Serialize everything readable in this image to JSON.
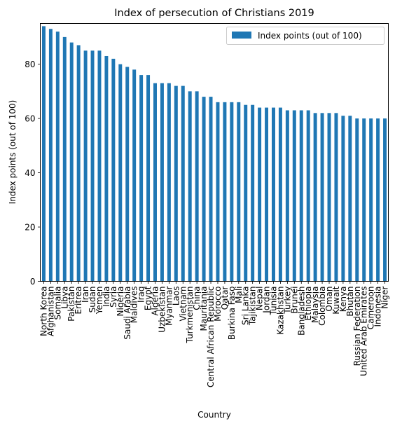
{
  "chart_data": {
    "type": "bar",
    "title": "Index of persecution of Christians 2019",
    "xlabel": "Country",
    "ylabel": "Index points (out of 100)",
    "ylim": [
      0,
      95
    ],
    "yticks": [
      0,
      20,
      40,
      60,
      80
    ],
    "grid": false,
    "legend_position": "top-right",
    "bar_color": "#1f77b4",
    "categories": [
      "North Korea",
      "Afghanistan",
      "Somalia",
      "Libya",
      "Pakistan",
      "Eritrea",
      "Iran",
      "Sudan",
      "Yemen",
      "India",
      "Syria",
      "Nigeria",
      "Saudi Arabia",
      "Maldives",
      "Iraq",
      "Egypt",
      "Algeria",
      "Uzbekistan",
      "Myanmar",
      "Laos",
      "Vietnam",
      "Turkmenistan",
      "China",
      "Mauritania",
      "Central African Republic",
      "Morocco",
      "Qatar",
      "Burkina Faso",
      "Mali",
      "Sri Lanka",
      "Tajikistan",
      "Nepal",
      "Jordan",
      "Tunisia",
      "Kazakhstan",
      "Turkey",
      "Brunei",
      "Bangladesh",
      "Ethiopia",
      "Malaysia",
      "Colombia",
      "Oman",
      "Kuwait",
      "Kenya",
      "Bhutan",
      "Russian Federation",
      "United Arab Emirates",
      "Cameroon",
      "Indonesia",
      "Niger"
    ],
    "series": [
      {
        "name": "Index points (out of 100)",
        "values": [
          94,
          93,
          92,
          90,
          88,
          87,
          85,
          85,
          85,
          83,
          82,
          80,
          79,
          78,
          76,
          76,
          73,
          73,
          73,
          72,
          72,
          70,
          70,
          68,
          68,
          66,
          66,
          66,
          66,
          65,
          65,
          64,
          64,
          64,
          64,
          63,
          63,
          63,
          63,
          62,
          62,
          62,
          62,
          61,
          61,
          60,
          60,
          60,
          60,
          60
        ]
      }
    ]
  }
}
